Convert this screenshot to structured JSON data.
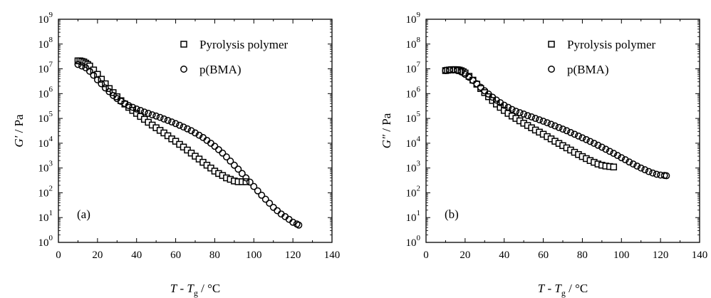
{
  "chart_data": [
    {
      "type": "scatter",
      "panel_label": "(a)",
      "xlabel": {
        "main": "T",
        "mid": " - T",
        "sub": "g",
        "unit": " / °C"
      },
      "ylabel": {
        "main": "G′",
        "unit": " / Pa"
      },
      "xlim": [
        0,
        140
      ],
      "xticks": [
        "0",
        "20",
        "40",
        "60",
        "80",
        "100",
        "120",
        "140"
      ],
      "ylim_log10": [
        0,
        9
      ],
      "yticks": [
        {
          "base": "10",
          "exp": "0"
        },
        {
          "base": "10",
          "exp": "1"
        },
        {
          "base": "10",
          "exp": "2"
        },
        {
          "base": "10",
          "exp": "3"
        },
        {
          "base": "10",
          "exp": "4"
        },
        {
          "base": "10",
          "exp": "5"
        },
        {
          "base": "10",
          "exp": "6"
        },
        {
          "base": "10",
          "exp": "7"
        },
        {
          "base": "10",
          "exp": "8"
        },
        {
          "base": "10",
          "exp": "9"
        }
      ],
      "y_scale": "log",
      "grid": false,
      "legend_position": "top-right",
      "series": [
        {
          "name": "Pyrolysis polymer",
          "marker": "square",
          "x": [
            10,
            11,
            12,
            13,
            14,
            15,
            16,
            18,
            20,
            22,
            24,
            26,
            28,
            30,
            32,
            34,
            36,
            38,
            40,
            42,
            44,
            46,
            48,
            50,
            52,
            54,
            56,
            58,
            60,
            62,
            64,
            66,
            68,
            70,
            72,
            74,
            76,
            78,
            80,
            82,
            84,
            86,
            88,
            90,
            92,
            94,
            96
          ],
          "y": [
            21000000.0,
            21000000.0,
            20000000.0,
            19000000.0,
            17000000.0,
            15000000.0,
            13000000.0,
            9000000.0,
            6000000.0,
            3800000.0,
            2500000.0,
            1600000.0,
            1100000.0,
            750000.0,
            520000.0,
            380000.0,
            280000.0,
            210000.0,
            160000.0,
            120000.0,
            92000.0,
            70000.0,
            54000.0,
            42000.0,
            33000.0,
            26000.0,
            20000.0,
            15000.0,
            12000.0,
            9000.0,
            7000.0,
            5300.0,
            4000.0,
            3000.0,
            2300.0,
            1700.0,
            1300.0,
            1000.0,
            750.0,
            600.0,
            500.0,
            400.0,
            350.0,
            300.0,
            280.0,
            280.0,
            280.0
          ]
        },
        {
          "name": "p(BMA)",
          "marker": "circle",
          "x": [
            10,
            12,
            14,
            16,
            18,
            20,
            22,
            24,
            26,
            28,
            30,
            32,
            34,
            36,
            38,
            40,
            42,
            44,
            46,
            48,
            50,
            52,
            54,
            56,
            58,
            60,
            62,
            64,
            66,
            68,
            70,
            72,
            74,
            76,
            78,
            80,
            82,
            84,
            86,
            88,
            90,
            92,
            94,
            96,
            98,
            100,
            102,
            104,
            106,
            108,
            110,
            112,
            114,
            116,
            118,
            120,
            122,
            123
          ],
          "y": [
            15000000.0,
            13000000.0,
            11000000.0,
            8000000.0,
            5500000.0,
            3600000.0,
            2500000.0,
            1700000.0,
            1200000.0,
            850000.0,
            630000.0,
            490000.0,
            400000.0,
            330000.0,
            280000.0,
            240000.0,
            210000.0,
            180000.0,
            160000.0,
            140000.0,
            125000.0,
            110000.0,
            95000.0,
            83000.0,
            72000.0,
            62000.0,
            53000.0,
            45000.0,
            38000.0,
            32000.0,
            26000.0,
            21000.0,
            17000.0,
            13000.0,
            10000.0,
            7500.0,
            5500.0,
            4000.0,
            2800.0,
            1900.0,
            1300.0,
            900.0,
            600.0,
            400.0,
            270.0,
            180.0,
            120.0,
            80.0,
            55.0,
            38.0,
            26.0,
            19.0,
            14.0,
            11.0,
            8.5,
            6.5,
            5.5,
            5
          ]
        }
      ]
    },
    {
      "type": "scatter",
      "panel_label": "(b)",
      "xlabel": {
        "main": "T",
        "mid": " - T",
        "sub": "g",
        "unit": " / °C"
      },
      "ylabel": {
        "main": "G″",
        "unit": " / Pa"
      },
      "xlim": [
        0,
        140
      ],
      "xticks": [
        "0",
        "20",
        "40",
        "60",
        "80",
        "100",
        "120",
        "140"
      ],
      "ylim_log10": [
        0,
        9
      ],
      "yticks": [
        {
          "base": "10",
          "exp": "0"
        },
        {
          "base": "10",
          "exp": "1"
        },
        {
          "base": "10",
          "exp": "2"
        },
        {
          "base": "10",
          "exp": "3"
        },
        {
          "base": "10",
          "exp": "4"
        },
        {
          "base": "10",
          "exp": "5"
        },
        {
          "base": "10",
          "exp": "6"
        },
        {
          "base": "10",
          "exp": "7"
        },
        {
          "base": "10",
          "exp": "8"
        },
        {
          "base": "10",
          "exp": "9"
        }
      ],
      "y_scale": "log",
      "grid": false,
      "legend_position": "top-right",
      "series": [
        {
          "name": "Pyrolysis polymer",
          "marker": "square",
          "x": [
            10,
            11,
            12,
            13,
            14,
            15,
            16,
            17,
            18,
            19,
            20,
            22,
            24,
            26,
            28,
            30,
            32,
            34,
            36,
            38,
            40,
            42,
            44,
            46,
            48,
            50,
            52,
            54,
            56,
            58,
            60,
            62,
            64,
            66,
            68,
            70,
            72,
            74,
            76,
            78,
            80,
            82,
            84,
            86,
            88,
            90,
            92,
            94,
            96
          ],
          "y": [
            8500000.0,
            8800000.0,
            9000000.0,
            9200000.0,
            9300000.0,
            9300000.0,
            9200000.0,
            8900000.0,
            8400000.0,
            7700000.0,
            6800000.0,
            5000000.0,
            3500000.0,
            2400000.0,
            1600000.0,
            1100000.0,
            750000.0,
            530000.0,
            380000.0,
            280000.0,
            210000.0,
            160000.0,
            125000.0,
            100000.0,
            80000.0,
            64000.0,
            52000.0,
            42000.0,
            34000.0,
            28000.0,
            23000.0,
            18500.0,
            15000.0,
            12000.0,
            9800.0,
            8000.0,
            6500.0,
            5300.0,
            4300.0,
            3500.0,
            2900.0,
            2400.0,
            2000.0,
            1700.0,
            1450.0,
            1300.0,
            1200.0,
            1150.0,
            1100.0
          ]
        },
        {
          "name": "p(BMA)",
          "marker": "circle",
          "x": [
            10,
            12,
            14,
            16,
            18,
            20,
            22,
            24,
            26,
            28,
            30,
            32,
            34,
            36,
            38,
            40,
            42,
            44,
            46,
            48,
            50,
            52,
            54,
            56,
            58,
            60,
            62,
            64,
            66,
            68,
            70,
            72,
            74,
            76,
            78,
            80,
            82,
            84,
            86,
            88,
            90,
            92,
            94,
            96,
            98,
            100,
            102,
            104,
            106,
            108,
            110,
            112,
            114,
            116,
            118,
            120,
            122,
            123
          ],
          "y": [
            8500000.0,
            9000000.0,
            9000000.0,
            8500000.0,
            7500000.0,
            6000000.0,
            4600000.0,
            3400000.0,
            2500000.0,
            1800000.0,
            1300000.0,
            960000.0,
            720000.0,
            550000.0,
            430000.0,
            340000.0,
            280000.0,
            230000.0,
            195000.0,
            170000.0,
            150000.0,
            130000.0,
            115000.0,
            100000.0,
            88000.0,
            77000.0,
            67000.0,
            58000.0,
            50000.0,
            43000.0,
            37000.0,
            32000.0,
            27000.0,
            23000.0,
            19500.0,
            16500.0,
            14000.0,
            11800.0,
            9900.0,
            8300.0,
            6900.0,
            5700.0,
            4700.0,
            3900.0,
            3200.0,
            2600.0,
            2150.0,
            1750.0,
            1450.0,
            1200.0,
            1000.0,
            850.0,
            720.0,
            630.0,
            560.0,
            520.0,
            500.0,
            490.0
          ]
        }
      ]
    }
  ]
}
